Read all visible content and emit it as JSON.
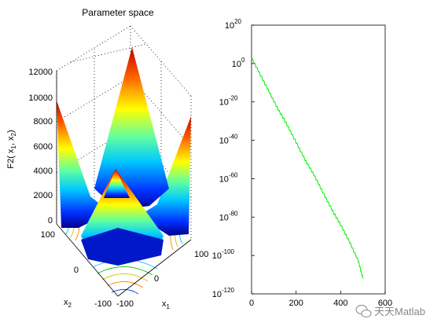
{
  "figure": {
    "watermark": "天天Matlab"
  },
  "surface_plot": {
    "chart_data": {
      "type": "surface",
      "title": "Parameter space",
      "zlabel": "F2( x",
      "zlabel_sub1": "1",
      "zlabel_sep": ", x",
      "zlabel_sub2": "2",
      "zlabel_close": ")",
      "xlabel": "x",
      "xlabel_sub": "1",
      "ylabel": "x",
      "ylabel_sub": "2",
      "zticks": [
        "0",
        "2000",
        "4000",
        "6000",
        "8000",
        "10000",
        "12000"
      ],
      "xticks": [
        "-100",
        "0",
        "100"
      ],
      "yticks": [
        "-100",
        "0",
        "100"
      ],
      "xlim": [
        -100,
        100
      ],
      "ylim": [
        -100,
        100
      ],
      "zlim": [
        0,
        12000
      ],
      "corner_peaks": [
        12000,
        8700,
        7800,
        7100
      ],
      "colormap": "jet",
      "contour_projection": true
    }
  },
  "convergence_plot": {
    "chart_data": {
      "type": "line",
      "x": [
        0,
        40,
        80,
        120,
        160,
        200,
        240,
        280,
        320,
        360,
        400,
        440,
        480,
        500
      ],
      "y_log10": [
        3,
        -6,
        -15,
        -24,
        -32,
        -41,
        -50,
        -58,
        -67,
        -76,
        -84,
        -93,
        -103,
        -112
      ],
      "xticks": [
        "0",
        "200",
        "400",
        "600"
      ],
      "xlim": [
        0,
        600
      ],
      "yscale": "log",
      "ylim_log10": [
        -120,
        20
      ],
      "yticks_exp": [
        "20",
        "0",
        "-20",
        "-40",
        "-60",
        "-80",
        "-100",
        "-120"
      ],
      "ytick_base": "10",
      "line_color": "#00ee00"
    }
  }
}
